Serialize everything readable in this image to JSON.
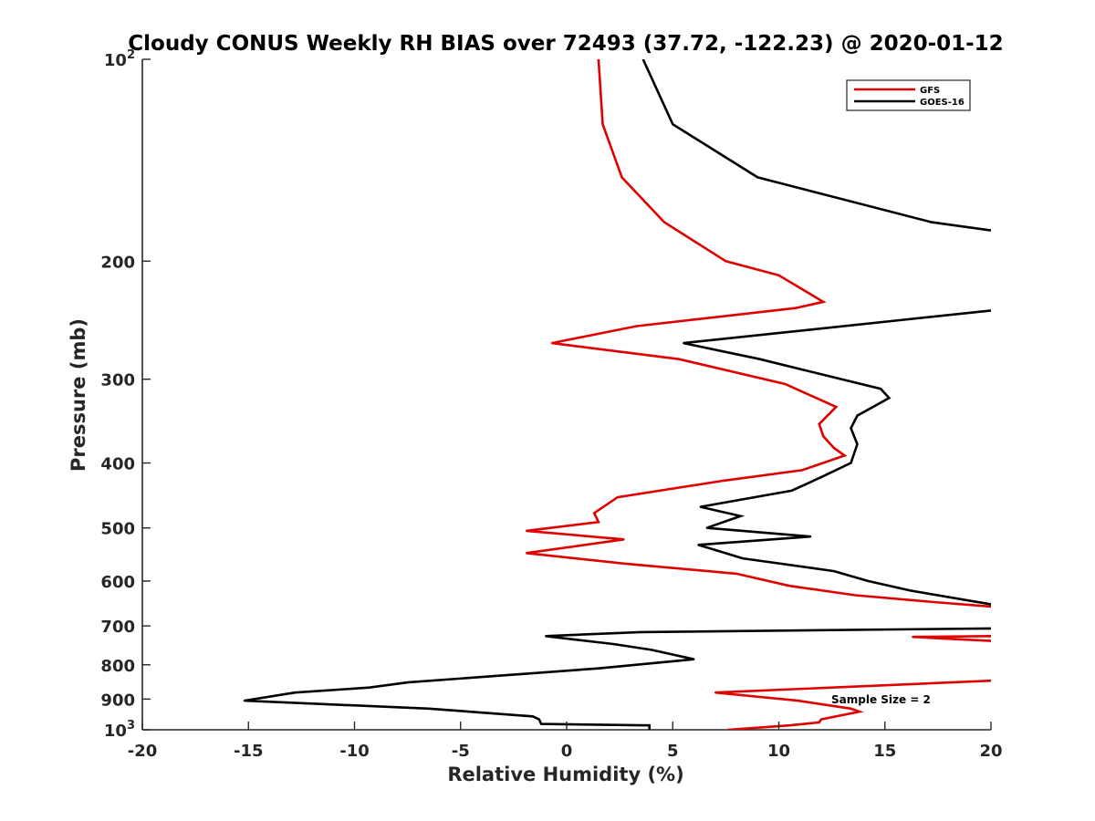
{
  "chart_data": {
    "type": "line",
    "title": "Cloudy CONUS Weekly RH BIAS over 72493 (37.72, -122.23) @ 2020-01-12",
    "xlabel": "Relative Humidity (%)",
    "ylabel": "Pressure (mb)",
    "xlim": [
      -20,
      20
    ],
    "ylim": [
      100,
      1000
    ],
    "y_scale": "log",
    "y_reversed": true,
    "grid": false,
    "x_ticks": [
      {
        "value": -20,
        "label": "-20"
      },
      {
        "value": -15,
        "label": "-15"
      },
      {
        "value": -10,
        "label": "-10"
      },
      {
        "value": -5,
        "label": "-5"
      },
      {
        "value": 0,
        "label": "0"
      },
      {
        "value": 5,
        "label": "5"
      },
      {
        "value": 10,
        "label": "10"
      },
      {
        "value": 15,
        "label": "15"
      },
      {
        "value": 20,
        "label": "20"
      }
    ],
    "y_ticks": [
      {
        "value": 100,
        "base": "10",
        "exp": "2"
      },
      {
        "value": 200,
        "base": "200",
        "exp": ""
      },
      {
        "value": 300,
        "base": "300",
        "exp": ""
      },
      {
        "value": 400,
        "base": "400",
        "exp": ""
      },
      {
        "value": 500,
        "base": "500",
        "exp": ""
      },
      {
        "value": 600,
        "base": "600",
        "exp": ""
      },
      {
        "value": 700,
        "base": "700",
        "exp": ""
      },
      {
        "value": 800,
        "base": "800",
        "exp": ""
      },
      {
        "value": 900,
        "base": "900",
        "exp": ""
      },
      {
        "value": 1000,
        "base": "10",
        "exp": "3"
      }
    ],
    "legend": {
      "placement": "top-right"
    },
    "annotation": "Sample Size = 2",
    "series": [
      {
        "name": "GFS",
        "color": "#e00000",
        "points": [
          [
            1.5,
            100
          ],
          [
            1.7,
            125
          ],
          [
            2.6,
            150
          ],
          [
            4.6,
            175
          ],
          [
            7.5,
            200
          ],
          [
            10.0,
            210
          ],
          [
            12.1,
            230
          ],
          [
            10.8,
            235
          ],
          [
            3.3,
            250
          ],
          [
            -0.7,
            265
          ],
          [
            5.3,
            280
          ],
          [
            10.3,
            305
          ],
          [
            12.7,
            330
          ],
          [
            11.9,
            350
          ],
          [
            12.1,
            365
          ],
          [
            12.6,
            380
          ],
          [
            13.1,
            390
          ],
          [
            11.1,
            410
          ],
          [
            7.4,
            425
          ],
          [
            2.4,
            450
          ],
          [
            1.3,
            475
          ],
          [
            1.5,
            490
          ],
          [
            -1.9,
            505
          ],
          [
            2.7,
            520
          ],
          [
            -1.9,
            545
          ],
          [
            2.7,
            565
          ],
          [
            8.0,
            585
          ],
          [
            10.5,
            610
          ],
          [
            13.6,
            630
          ],
          [
            17.3,
            645
          ],
          [
            20.0,
            655
          ],
          [
            null,
            null
          ],
          [
            20.0,
            725
          ],
          [
            16.3,
            727
          ],
          [
            20.0,
            737
          ],
          [
            null,
            null
          ],
          [
            20.0,
            845
          ],
          [
            7.0,
            880
          ],
          [
            10.9,
            905
          ],
          [
            13.4,
            930
          ],
          [
            13.8,
            940
          ],
          [
            12.0,
            965
          ],
          [
            11.9,
            975
          ],
          [
            10.5,
            985
          ],
          [
            7.6,
            1000
          ]
        ]
      },
      {
        "name": "GOES-16",
        "color": "#000000",
        "points": [
          [
            3.6,
            100
          ],
          [
            5.0,
            125
          ],
          [
            9.0,
            150
          ],
          [
            17.2,
            175
          ],
          [
            20.0,
            180
          ],
          [
            null,
            null
          ],
          [
            20.0,
            237
          ],
          [
            15.7,
            245
          ],
          [
            5.5,
            265
          ],
          [
            9.1,
            280
          ],
          [
            14.8,
            310
          ],
          [
            15.2,
            320
          ],
          [
            13.7,
            340
          ],
          [
            13.4,
            355
          ],
          [
            13.7,
            375
          ],
          [
            13.4,
            400
          ],
          [
            12.0,
            420
          ],
          [
            10.6,
            440
          ],
          [
            6.3,
            465
          ],
          [
            8.2,
            480
          ],
          [
            6.6,
            500
          ],
          [
            11.5,
            515
          ],
          [
            6.2,
            530
          ],
          [
            8.3,
            555
          ],
          [
            12.6,
            580
          ],
          [
            14.2,
            600
          ],
          [
            16.2,
            620
          ],
          [
            20.0,
            650
          ],
          [
            null,
            null
          ],
          [
            20.0,
            706
          ],
          [
            3.5,
            715
          ],
          [
            -1.0,
            725
          ],
          [
            2.2,
            745
          ],
          [
            4.0,
            760
          ],
          [
            6.0,
            785
          ],
          [
            1.5,
            810
          ],
          [
            -7.5,
            850
          ],
          [
            -9.3,
            865
          ],
          [
            -12.8,
            880
          ],
          [
            -15.2,
            905
          ],
          [
            -6.5,
            930
          ],
          [
            -1.6,
            955
          ],
          [
            -1.3,
            965
          ],
          [
            -1.2,
            980
          ],
          [
            3.9,
            985
          ],
          [
            3.9,
            1000
          ]
        ]
      }
    ]
  }
}
